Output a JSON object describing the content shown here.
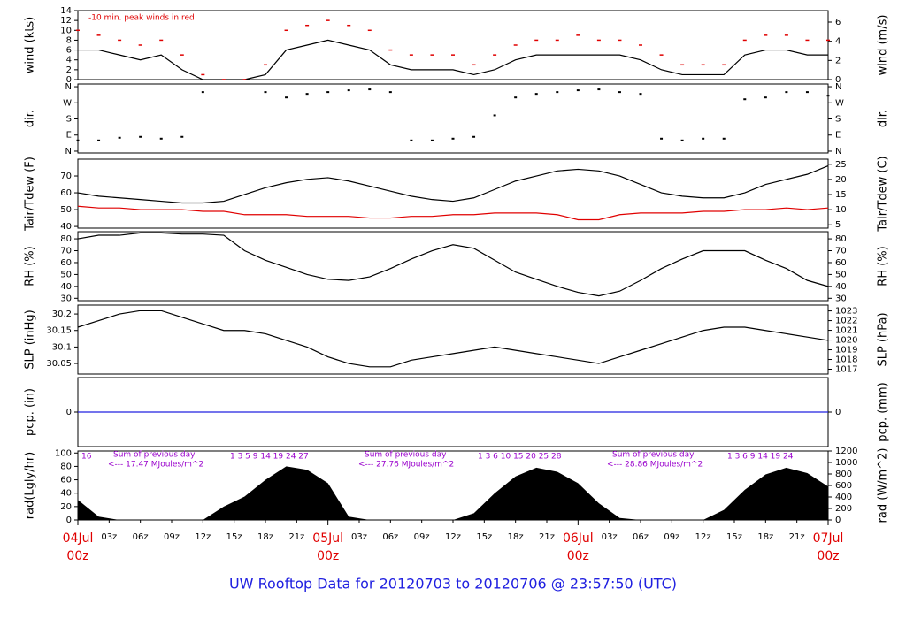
{
  "chart_data": [
    {
      "type": "line",
      "ylabel": "wind (kts)",
      "y2label": "wind (m/s)",
      "annotation": "-10 min. peak winds in red",
      "xlim": [
        0,
        72
      ],
      "ylim": [
        0,
        14
      ],
      "yticks": [
        0,
        2,
        4,
        6,
        8,
        10,
        12,
        14
      ],
      "y2lim": [
        0,
        7.2
      ],
      "y2ticks": [
        0,
        2,
        4,
        6
      ],
      "x": [
        0,
        2,
        4,
        6,
        8,
        10,
        12,
        14,
        16,
        18,
        20,
        22,
        24,
        26,
        28,
        30,
        32,
        34,
        36,
        38,
        40,
        42,
        44,
        46,
        48,
        50,
        52,
        54,
        56,
        58,
        60,
        62,
        64,
        66,
        68,
        70,
        72
      ],
      "series": [
        {
          "name": "wind",
          "color": "#000000",
          "mode": "line",
          "values": [
            6,
            6,
            5,
            4,
            5,
            2,
            0,
            0,
            0,
            1,
            6,
            7,
            8,
            7,
            6,
            3,
            2,
            2,
            2,
            1,
            2,
            4,
            5,
            5,
            5,
            5,
            5,
            4,
            2,
            1,
            1,
            1,
            5,
            6,
            6,
            5,
            5
          ]
        },
        {
          "name": "peak",
          "color": "#e00000",
          "mode": "markers",
          "values": [
            10,
            9,
            8,
            7,
            8,
            5,
            1,
            0,
            0,
            3,
            10,
            11,
            12,
            11,
            10,
            6,
            5,
            5,
            5,
            3,
            5,
            7,
            8,
            8,
            9,
            8,
            8,
            7,
            5,
            3,
            3,
            3,
            8,
            9,
            9,
            8,
            8
          ]
        }
      ]
    },
    {
      "type": "scatter",
      "ylabel": "dir.",
      "y2label": "dir.",
      "xlim": [
        0,
        72
      ],
      "ylim": [
        -10,
        375
      ],
      "yticks": [
        {
          "value": 0,
          "label": "N"
        },
        {
          "value": 90,
          "label": "E"
        },
        {
          "value": 180,
          "label": "S"
        },
        {
          "value": 270,
          "label": "W"
        },
        {
          "value": 360,
          "label": "N"
        }
      ],
      "x": [
        0,
        2,
        4,
        6,
        8,
        10,
        12,
        14,
        16,
        18,
        20,
        22,
        24,
        26,
        28,
        30,
        32,
        34,
        36,
        38,
        40,
        42,
        44,
        46,
        48,
        50,
        52,
        54,
        56,
        58,
        60,
        62,
        64,
        66,
        68,
        70,
        72
      ],
      "series": [
        {
          "name": "dir",
          "color": "#000000",
          "values": [
            60,
            60,
            75,
            80,
            70,
            80,
            330,
            null,
            null,
            330,
            300,
            320,
            330,
            340,
            345,
            330,
            60,
            60,
            70,
            80,
            200,
            300,
            320,
            330,
            340,
            345,
            330,
            320,
            70,
            60,
            70,
            70,
            290,
            300,
            330,
            330,
            310
          ]
        }
      ]
    },
    {
      "type": "line",
      "ylabel": "Tair/Tdew (F)",
      "y2label": "Tair/Tdew (C)",
      "xlim": [
        0,
        72
      ],
      "ylim": [
        39,
        80
      ],
      "yticks": [
        40,
        50,
        60,
        70
      ],
      "y2lim": [
        3.9,
        26.7
      ],
      "y2ticks": [
        5,
        10,
        15,
        20,
        25
      ],
      "x": [
        0,
        2,
        4,
        6,
        8,
        10,
        12,
        14,
        16,
        18,
        20,
        22,
        24,
        26,
        28,
        30,
        32,
        34,
        36,
        38,
        40,
        42,
        44,
        46,
        48,
        50,
        52,
        54,
        56,
        58,
        60,
        62,
        64,
        66,
        68,
        70,
        72
      ],
      "series": [
        {
          "name": "Tair",
          "color": "#000000",
          "mode": "line",
          "values": [
            60,
            58,
            57,
            56,
            55,
            54,
            54,
            55,
            59,
            63,
            66,
            68,
            69,
            67,
            64,
            61,
            58,
            56,
            55,
            57,
            62,
            67,
            70,
            73,
            74,
            73,
            70,
            65,
            60,
            58,
            57,
            57,
            60,
            65,
            68,
            71,
            76
          ]
        },
        {
          "name": "Tdew",
          "color": "#e00000",
          "mode": "line",
          "values": [
            52,
            51,
            51,
            50,
            50,
            50,
            49,
            49,
            47,
            47,
            47,
            46,
            46,
            46,
            45,
            45,
            46,
            46,
            47,
            47,
            48,
            48,
            48,
            47,
            44,
            44,
            47,
            48,
            48,
            48,
            49,
            49,
            50,
            50,
            51,
            50,
            51
          ]
        }
      ]
    },
    {
      "type": "line",
      "ylabel": "RH (%)",
      "y2label": "RH (%)",
      "xlim": [
        0,
        72
      ],
      "ylim": [
        28,
        86
      ],
      "yticks": [
        30,
        40,
        50,
        60,
        70,
        80
      ],
      "y2lim": [
        28,
        86
      ],
      "y2ticks": [
        30,
        40,
        50,
        60,
        70,
        80
      ],
      "x": [
        0,
        2,
        4,
        6,
        8,
        10,
        12,
        14,
        16,
        18,
        20,
        22,
        24,
        26,
        28,
        30,
        32,
        34,
        36,
        38,
        40,
        42,
        44,
        46,
        48,
        50,
        52,
        54,
        56,
        58,
        60,
        62,
        64,
        66,
        68,
        70,
        72
      ],
      "series": [
        {
          "name": "RH",
          "color": "#000000",
          "mode": "line",
          "values": [
            80,
            83,
            83,
            85,
            85,
            84,
            84,
            83,
            70,
            62,
            56,
            50,
            46,
            45,
            48,
            55,
            63,
            70,
            75,
            72,
            62,
            52,
            46,
            40,
            35,
            32,
            36,
            45,
            55,
            63,
            70,
            70,
            70,
            62,
            55,
            45,
            40
          ]
        }
      ]
    },
    {
      "type": "line",
      "ylabel": "SLP (inHg)",
      "y2label": "SLP (hPa)",
      "xlim": [
        0,
        72
      ],
      "ylim": [
        30.018,
        30.227
      ],
      "yticks": [
        30.05,
        30.1,
        30.15,
        30.2
      ],
      "y2lim": [
        1016.5,
        1023.6
      ],
      "y2ticks": [
        1017,
        1018,
        1019,
        1020,
        1021,
        1022,
        1023
      ],
      "x": [
        0,
        2,
        4,
        6,
        8,
        10,
        12,
        14,
        16,
        18,
        20,
        22,
        24,
        26,
        28,
        30,
        32,
        34,
        36,
        38,
        40,
        42,
        44,
        46,
        48,
        50,
        52,
        54,
        56,
        58,
        60,
        62,
        64,
        66,
        68,
        70,
        72
      ],
      "series": [
        {
          "name": "SLP",
          "color": "#000000",
          "mode": "line",
          "values": [
            30.16,
            30.18,
            30.2,
            30.21,
            30.21,
            30.19,
            30.17,
            30.15,
            30.15,
            30.14,
            30.12,
            30.1,
            30.07,
            30.05,
            30.04,
            30.04,
            30.06,
            30.07,
            30.08,
            30.09,
            30.1,
            30.09,
            30.08,
            30.07,
            30.06,
            30.05,
            30.07,
            30.09,
            30.11,
            30.13,
            30.15,
            30.16,
            30.16,
            30.15,
            30.14,
            30.13,
            30.12
          ]
        }
      ]
    },
    {
      "type": "line",
      "ylabel": "pcp. (in)",
      "y2label": "pcp. (mm)",
      "xlim": [
        0,
        72
      ],
      "ylim": [
        -1,
        1
      ],
      "yticks": [
        0
      ],
      "y2lim": [
        -1,
        1
      ],
      "y2ticks": [
        0
      ],
      "x": [
        0,
        2,
        4,
        6,
        8,
        10,
        12,
        14,
        16,
        18,
        20,
        22,
        24,
        26,
        28,
        30,
        32,
        34,
        36,
        38,
        40,
        42,
        44,
        46,
        48,
        50,
        52,
        54,
        56,
        58,
        60,
        62,
        64,
        66,
        68,
        70,
        72
      ],
      "series": [
        {
          "name": "pcp",
          "color": "#2020e0",
          "mode": "line",
          "values": [
            0,
            0,
            0,
            0,
            0,
            0,
            0,
            0,
            0,
            0,
            0,
            0,
            0,
            0,
            0,
            0,
            0,
            0,
            0,
            0,
            0,
            0,
            0,
            0,
            0,
            0,
            0,
            0,
            0,
            0,
            0,
            0,
            0,
            0,
            0,
            0,
            0
          ]
        }
      ]
    },
    {
      "type": "area",
      "ylabel": "rad(Lgly/hr)",
      "y2label": "rad (W/m^2)",
      "xlim": [
        0,
        72
      ],
      "ylim": [
        0,
        103
      ],
      "yticks": [
        0,
        20,
        40,
        60,
        80,
        100
      ],
      "y2lim": [
        0,
        1200
      ],
      "y2ticks": [
        0,
        200,
        400,
        600,
        800,
        1000,
        1200
      ],
      "annotations": [
        "16",
        "1   3   5   9   14   19   24   27",
        "Sum of previous day",
        "<--- 17.47 MJoules/m^2",
        "1   3   6   10   15   20   25   28",
        "Sum of previous day",
        "<--- 27.76 MJoules/m^2",
        "1   3   6   9   14   19   24",
        "Sum of previous day",
        "<--- 28.86 MJoules/m^2"
      ],
      "x": [
        0,
        2,
        4,
        6,
        8,
        10,
        12,
        14,
        16,
        18,
        20,
        22,
        24,
        26,
        28,
        30,
        32,
        34,
        36,
        38,
        40,
        42,
        44,
        46,
        48,
        50,
        52,
        54,
        56,
        58,
        60,
        62,
        64,
        66,
        68,
        70,
        72
      ],
      "series": [
        {
          "name": "rad",
          "color": "#000000",
          "values": [
            30,
            5,
            0,
            0,
            0,
            0,
            0,
            20,
            35,
            60,
            80,
            75,
            55,
            5,
            0,
            0,
            0,
            0,
            0,
            10,
            40,
            65,
            78,
            72,
            55,
            25,
            3,
            0,
            0,
            0,
            0,
            15,
            45,
            68,
            78,
            70,
            50
          ]
        }
      ],
      "xticks": [
        {
          "value": 3,
          "label": "03z"
        },
        {
          "value": 6,
          "label": "06z"
        },
        {
          "value": 9,
          "label": "09z"
        },
        {
          "value": 12,
          "label": "12z"
        },
        {
          "value": 15,
          "label": "15z"
        },
        {
          "value": 18,
          "label": "18z"
        },
        {
          "value": 21,
          "label": "21z"
        },
        {
          "value": 27,
          "label": "03z"
        },
        {
          "value": 30,
          "label": "06z"
        },
        {
          "value": 33,
          "label": "09z"
        },
        {
          "value": 36,
          "label": "12z"
        },
        {
          "value": 39,
          "label": "15z"
        },
        {
          "value": 42,
          "label": "18z"
        },
        {
          "value": 45,
          "label": "21z"
        },
        {
          "value": 51,
          "label": "03z"
        },
        {
          "value": 54,
          "label": "06z"
        },
        {
          "value": 57,
          "label": "09z"
        },
        {
          "value": 60,
          "label": "12z"
        },
        {
          "value": 63,
          "label": "15z"
        },
        {
          "value": 66,
          "label": "18z"
        },
        {
          "value": 69,
          "label": "21z"
        }
      ],
      "day_ticks": [
        {
          "value": 0,
          "label": "04Jul"
        },
        {
          "value": 24,
          "label": "05Jul"
        },
        {
          "value": 48,
          "label": "06Jul"
        },
        {
          "value": 72,
          "label": "07Jul"
        }
      ],
      "day_hour": "00z",
      "title": "UW Rooftop Data for 20120703  to  20120706 @ 23:57:50  (UTC)"
    }
  ]
}
